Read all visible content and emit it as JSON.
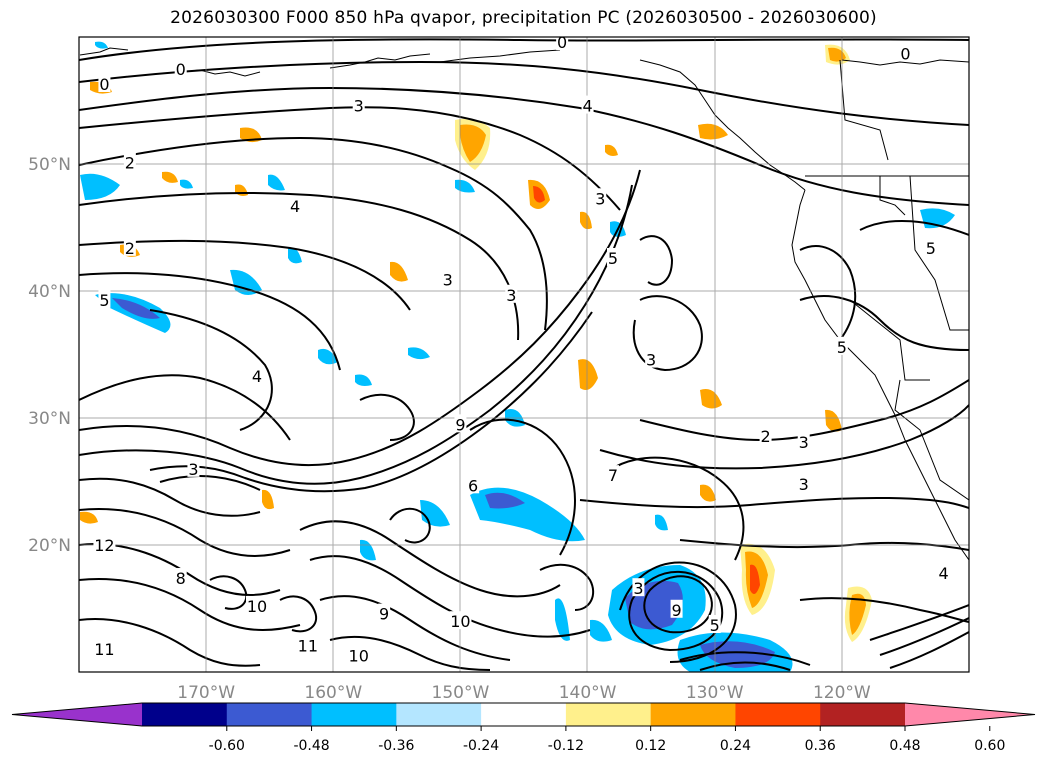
{
  "title": "2026030300 F000 850 hPa qvapor, precipitation PC (2026030500 - 2026030600)",
  "map": {
    "lon_range": [
      -180,
      -110
    ],
    "lat_range": [
      10,
      60
    ],
    "lat_ticks": [
      {
        "value": 20,
        "label": "20°N"
      },
      {
        "value": 30,
        "label": "30°N"
      },
      {
        "value": 40,
        "label": "40°N"
      },
      {
        "value": 50,
        "label": "50°N"
      }
    ],
    "lon_ticks": [
      {
        "value": -170,
        "label": "170°W"
      },
      {
        "value": -160,
        "label": "160°W"
      },
      {
        "value": -150,
        "label": "150°W"
      },
      {
        "value": -140,
        "label": "140°W"
      },
      {
        "value": -130,
        "label": "130°W"
      },
      {
        "value": -120,
        "label": "120°W"
      }
    ],
    "grid": true,
    "contour_labels": [
      {
        "text": "0",
        "lon": -172,
        "lat": 57.5
      },
      {
        "text": "0",
        "lon": -142,
        "lat": 59.6
      },
      {
        "text": "0",
        "lon": -178,
        "lat": 56.3
      },
      {
        "text": "0",
        "lon": -115,
        "lat": 58.7
      },
      {
        "text": "3",
        "lon": -158,
        "lat": 54.6
      },
      {
        "text": "4",
        "lon": -140,
        "lat": 54.6
      },
      {
        "text": "2",
        "lon": -176,
        "lat": 50.1
      },
      {
        "text": "4",
        "lon": -163,
        "lat": 46.7
      },
      {
        "text": "2",
        "lon": -176,
        "lat": 43.4
      },
      {
        "text": "3",
        "lon": -151,
        "lat": 40.9
      },
      {
        "text": "3",
        "lon": -146,
        "lat": 39.7
      },
      {
        "text": "5",
        "lon": -178,
        "lat": 39.3
      },
      {
        "text": "5",
        "lon": -138,
        "lat": 42.6
      },
      {
        "text": "3",
        "lon": -135,
        "lat": 34.6
      },
      {
        "text": "3",
        "lon": -139,
        "lat": 47.3
      },
      {
        "text": "4",
        "lon": -166,
        "lat": 33.3
      },
      {
        "text": "3",
        "lon": -171,
        "lat": 26.0
      },
      {
        "text": "2",
        "lon": -126,
        "lat": 28.6
      },
      {
        "text": "3",
        "lon": -123,
        "lat": 28.1
      },
      {
        "text": "3",
        "lon": -123,
        "lat": 24.8
      },
      {
        "text": "5",
        "lon": -120,
        "lat": 35.6
      },
      {
        "text": "5",
        "lon": -113,
        "lat": 43.4
      },
      {
        "text": "6",
        "lon": -149,
        "lat": 24.7
      },
      {
        "text": "7",
        "lon": -138,
        "lat": 25.5
      },
      {
        "text": "8",
        "lon": -172,
        "lat": 17.4
      },
      {
        "text": "9",
        "lon": -150,
        "lat": 29.5
      },
      {
        "text": "10",
        "lon": -166,
        "lat": 15.2
      },
      {
        "text": "11",
        "lon": -162,
        "lat": 12.1
      },
      {
        "text": "11",
        "lon": -178,
        "lat": 11.8
      },
      {
        "text": "12",
        "lon": -178,
        "lat": 20.0
      },
      {
        "text": "9",
        "lon": -133,
        "lat": 14.9
      },
      {
        "text": "5",
        "lon": -130,
        "lat": 13.7
      },
      {
        "text": "3",
        "lon": -136,
        "lat": 16.6
      },
      {
        "text": "4",
        "lon": -112,
        "lat": 17.8
      },
      {
        "text": "10",
        "lon": -158,
        "lat": 11.3
      },
      {
        "text": "9",
        "lon": -156,
        "lat": 14.6
      },
      {
        "text": "10",
        "lon": -150,
        "lat": 14.0
      }
    ],
    "colors": {
      "positive_light": "#fff08c",
      "positive_mid": "#ffa500",
      "positive_strong": "#ff4500",
      "negative_light": "#b4e6ff",
      "negative_mid": "#00bfff",
      "negative_strong": "#3c5ad2"
    }
  },
  "colorbar": {
    "ticks": [
      "-0.60",
      "-0.48",
      "-0.36",
      "-0.24",
      "-0.12",
      "0.12",
      "0.24",
      "0.36",
      "0.48",
      "0.60"
    ],
    "colors": [
      "#9932cc",
      "#00008b",
      "#3c5ad2",
      "#00bfff",
      "#b4e6ff",
      "#ffffff",
      "#fff08c",
      "#ffa500",
      "#ff4500",
      "#b22222",
      "#ff88aa"
    ]
  }
}
